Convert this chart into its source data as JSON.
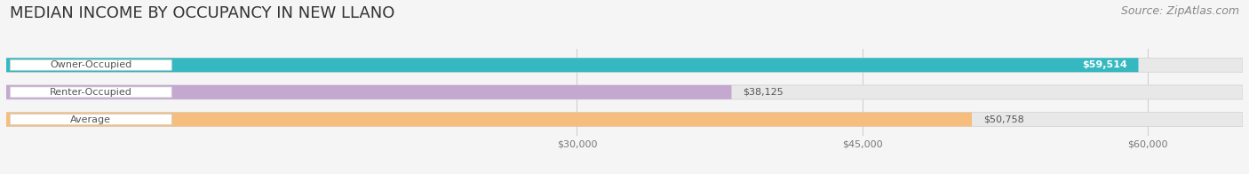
{
  "title": "MEDIAN INCOME BY OCCUPANCY IN NEW LLANO",
  "source": "Source: ZipAtlas.com",
  "categories": [
    "Owner-Occupied",
    "Renter-Occupied",
    "Average"
  ],
  "values": [
    59514,
    38125,
    50758
  ],
  "labels": [
    "$59,514",
    "$38,125",
    "$50,758"
  ],
  "bar_colors": [
    "#35b8c0",
    "#c4a8d0",
    "#f5be7e"
  ],
  "bar_bg_color": "#e8e8e8",
  "xmin": 0,
  "xmax": 65000,
  "xticks": [
    30000,
    45000,
    60000
  ],
  "xticklabels": [
    "$30,000",
    "$45,000",
    "$60,000"
  ],
  "title_fontsize": 13,
  "source_fontsize": 9,
  "cat_fontsize": 8,
  "val_fontsize": 8,
  "tick_fontsize": 8,
  "background_color": "#f5f5f5",
  "label_box_color": "#ffffff",
  "label_text_color": "#555555",
  "val_inside_color": "#ffffff",
  "val_outside_color": "#555555",
  "inside_threshold": 52000
}
